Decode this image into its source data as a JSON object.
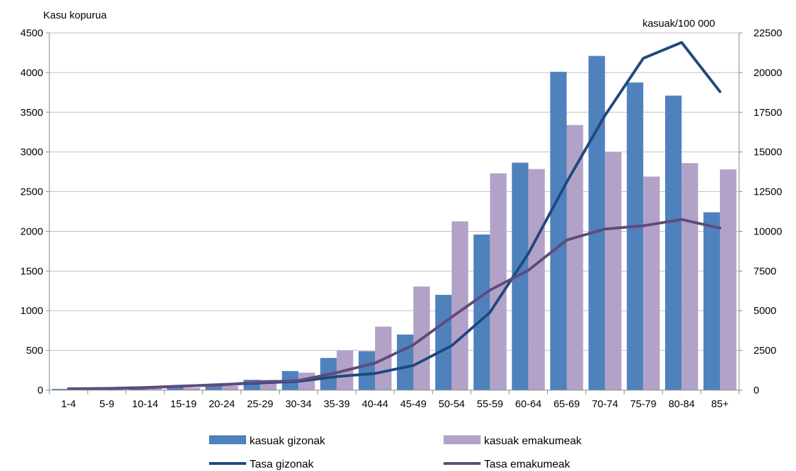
{
  "chart_data": {
    "type": "bar",
    "categories": [
      "1-4",
      "5-9",
      "10-14",
      "15-19",
      "20-24",
      "25-29",
      "30-34",
      "35-39",
      "40-44",
      "45-49",
      "50-54",
      "55-59",
      "60-64",
      "65-69",
      "70-74",
      "75-79",
      "80-84",
      "85+"
    ],
    "y_left_label": "Kasu kopurua",
    "y_right_label": "kasuak/100 000",
    "y_left_lim": [
      0,
      4500
    ],
    "y_left_ticks": [
      "0",
      "500",
      "1000",
      "1500",
      "2000",
      "2500",
      "3000",
      "3500",
      "4000",
      "4500"
    ],
    "y_right_lim": [
      0,
      22500
    ],
    "y_right_ticks": [
      "0",
      "2500",
      "5000",
      "7500",
      "10000",
      "12500",
      "15000",
      "17500",
      "20000",
      "22500"
    ],
    "grid": true,
    "legend_position": "bottom",
    "series": [
      {
        "name": "kasuak gizonak",
        "kind": "bar",
        "axis": "left",
        "color": "#4f81bd",
        "values": [
          15,
          20,
          25,
          35,
          50,
          130,
          240,
          405,
          490,
          700,
          1200,
          1960,
          2865,
          4010,
          4210,
          3875,
          3710,
          2240
        ]
      },
      {
        "name": "kasuak emakumeak",
        "kind": "bar",
        "axis": "left",
        "color": "#b3a2c7",
        "values": [
          10,
          15,
          20,
          30,
          55,
          130,
          220,
          500,
          800,
          1305,
          2125,
          2730,
          2785,
          3340,
          3000,
          2690,
          2860,
          2780
        ]
      },
      {
        "name": "Tasa gizonak",
        "kind": "line",
        "axis": "right",
        "color": "#1f497d",
        "values": [
          80,
          100,
          150,
          250,
          350,
          450,
          550,
          850,
          1050,
          1550,
          2800,
          4900,
          8600,
          13100,
          17300,
          20900,
          21900,
          18800
        ]
      },
      {
        "name": "Tasa emakumeak",
        "kind": "line",
        "axis": "right",
        "color": "#604a7b",
        "values": [
          70,
          110,
          160,
          260,
          330,
          500,
          600,
          1100,
          1700,
          2850,
          4600,
          6300,
          7550,
          9450,
          10150,
          10350,
          10750,
          10200
        ]
      }
    ]
  }
}
